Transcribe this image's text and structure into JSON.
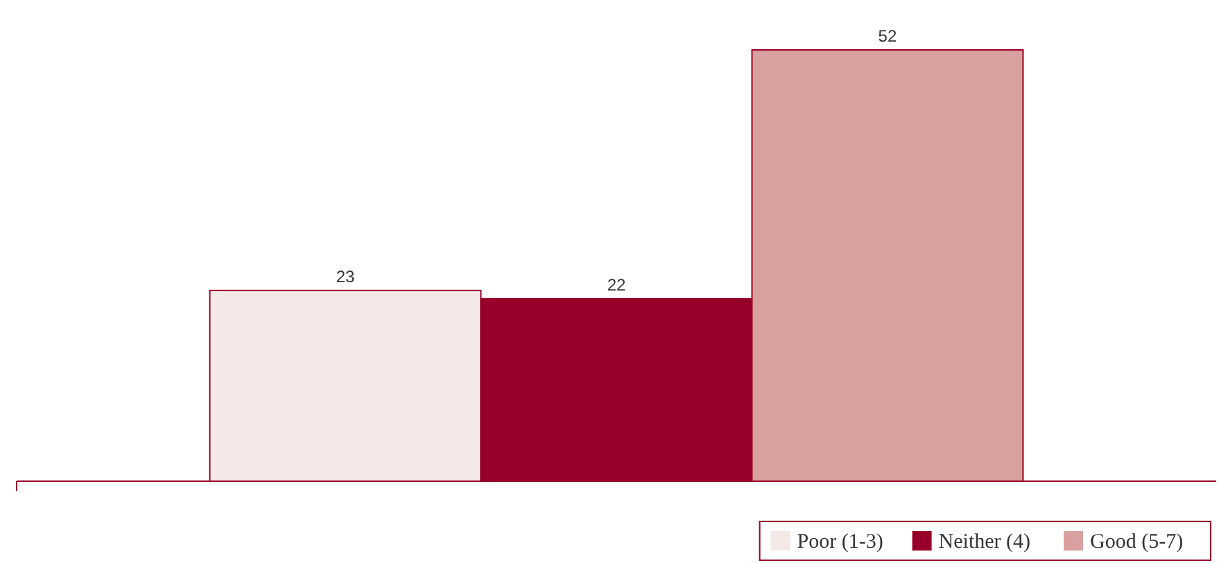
{
  "chart_data": {
    "type": "bar",
    "categories": [
      null
    ],
    "series": [
      {
        "name": "Poor (1-3)",
        "color": "#f5e9e7",
        "values": [
          23
        ]
      },
      {
        "name": "Neither (4)",
        "color": "#990029",
        "values": [
          22
        ]
      },
      {
        "name": "Good (5-7)",
        "color": "#d8a09e",
        "values": [
          52
        ]
      }
    ],
    "data_labels": true,
    "legend": "bottom right"
  }
}
